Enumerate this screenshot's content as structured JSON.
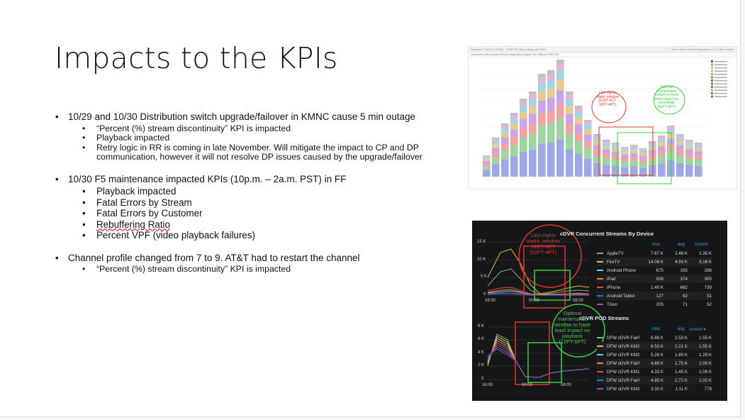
{
  "slide": {
    "title": "Impacts to the KPIs",
    "bullets": [
      {
        "text": "10/29 and 10/30 Distribution switch upgrade/failover in KMNC cause 5 min outage",
        "sub": [
          "“Percent (%) stream discontinuity” KPI is impacted",
          "Playback impacted",
          "Retry logic in RR is coming in late November. Will mitigate the impact to CP and DP communication, however it will not resolve DP issues caused by the upgrade/failover"
        ]
      },
      {
        "text": "10/30 F5 maintenance impacted KPIs (10p.m. – 2a.m. PST) in FF",
        "sub": [
          "Playback impacted",
          "Fatal Errors by Stream",
          "Fatal Errors by Customer",
          "Rebuffering Ratio",
          "Percent VPF (video playback failures)"
        ]
      },
      {
        "text": "Channel profile changed from 7 to 9. AT&T had to restart the channel",
        "sub": [
          "“Percent (%) stream discontinuity” KPI is impacted"
        ]
      }
    ]
  },
  "screenshot_top": {
    "toolbar_text": "Visualize  /  DirecTV-CDVR - STARTED Recordings per POD",
    "filter_text": "component:dfl-kb-action:RecordingStatus:update && Status:STARTED",
    "menu_text": "Save   Share   Refresh   Reporting   ◷ 15 Last 4 hours",
    "annotation_red": [
      "Last nights",
      "maint. window",
      "(12CT-6CT",
      "10PT-4PT)"
    ],
    "annotation_green": [
      "Optimal",
      "maintenance",
      "window to have",
      "least impact on",
      "recordings",
      "(12PT-6PT)"
    ]
  },
  "screenshot_bottom": {
    "panel1": {
      "title": "cDVR Concurrent Streams By Device",
      "y_ticks": [
        "15 K",
        "10 K",
        "5 K",
        "0"
      ],
      "x_ticks": [
        "16:00",
        "00:00",
        "08:00"
      ],
      "columns": [
        "max",
        "avg",
        "current"
      ],
      "rows": [
        {
          "name": "AppleTV",
          "max": "7.67 K",
          "avg": "2.46 K",
          "current": "1.35 K",
          "color": "#7eb26d"
        },
        {
          "name": "FireTV",
          "max": "14.08 K",
          "avg": "4.93 K",
          "current": "3.16 K",
          "color": "#eab839"
        },
        {
          "name": "Android Phone",
          "max": "675",
          "avg": "335",
          "current": "336",
          "color": "#6ed0e0"
        },
        {
          "name": "iPad",
          "max": "938",
          "avg": "374",
          "current": "300",
          "color": "#ef843c"
        },
        {
          "name": "iPhone",
          "max": "1.40 K",
          "avg": "662",
          "current": "739",
          "color": "#e24d42"
        },
        {
          "name": "Android Tablet",
          "max": "127",
          "avg": "62",
          "current": "51",
          "color": "#1f78c1"
        },
        {
          "name": "Tizen",
          "max": "205",
          "avg": "71",
          "current": "52",
          "color": "#ba43a9"
        }
      ],
      "annotation_red": [
        "Last nights",
        "maint. window",
        "12CT-6CT",
        "(10PT-4PT)"
      ]
    },
    "panel2": {
      "title": "cDVR POD Streams",
      "y_ticks": [
        "8 K",
        "6 K",
        "4 K",
        "2 K",
        "0"
      ],
      "x_ticks": [
        "16:00",
        "00:00",
        "08:00"
      ],
      "columns": [
        "max",
        "avg",
        "current ▾"
      ],
      "rows": [
        {
          "name": "DFW cDVR Fairfield 03",
          "max": "6.88 K",
          "avg": "2.53 K",
          "current": "1.55 K",
          "color": "#7eb26d"
        },
        {
          "name": "DFW cDVR KM2a",
          "max": "6.53 K",
          "avg": "2.21 K",
          "current": "1.55 K",
          "color": "#eab839"
        },
        {
          "name": "DFW cDVR KM2b",
          "max": "5.26 K",
          "avg": "1.80 K",
          "current": "1.29 K",
          "color": "#6ed0e0"
        },
        {
          "name": "DFW cDVR Fairfield 02",
          "max": "4.89 K",
          "avg": "1.75 K",
          "current": "1.09 K",
          "color": "#ef843c"
        },
        {
          "name": "DFW cDVR KM1a",
          "max": "4.33 K",
          "avg": "1.45 K",
          "current": "1.08 K",
          "color": "#e24d42"
        },
        {
          "name": "DFW cDVR Fairfield 01",
          "max": "4.85 K",
          "avg": "1.72 K",
          "current": "1.02 K",
          "color": "#1f78c1"
        },
        {
          "name": "DFW cDVR KM3a",
          "max": "3.30 K",
          "avg": "1.11 K",
          "current": "779",
          "color": "#ba43a9"
        }
      ],
      "annotation_green": [
        "Optimal",
        "maintenance",
        "window to have",
        "least impact on",
        "playback",
        "(12PT-6PT)"
      ]
    }
  },
  "colors": {
    "text": "#111111",
    "red_annotation": "#e0352b",
    "green_annotation": "#3ecf3e",
    "grafana_bg": "#161719",
    "grafana_blue": "#33a2e5"
  }
}
